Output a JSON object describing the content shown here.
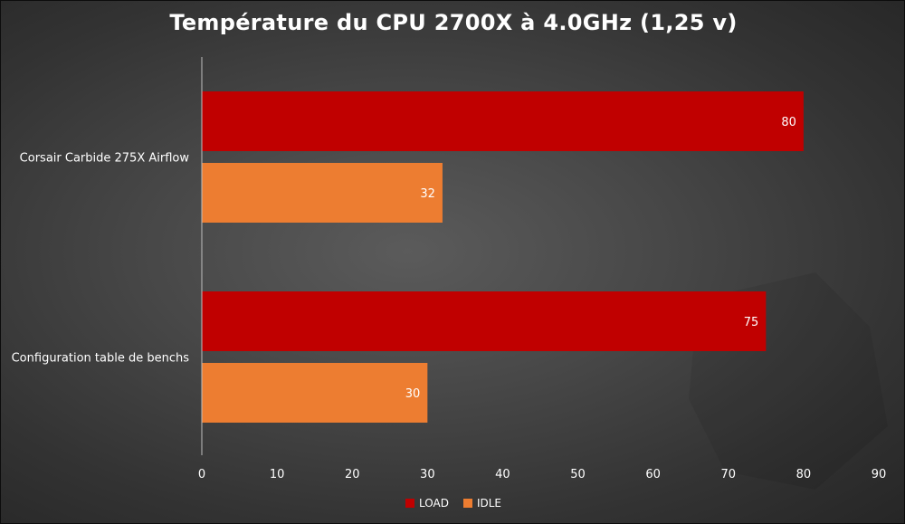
{
  "chart_data": {
    "type": "bar",
    "orientation": "horizontal",
    "title": "Température du CPU 2700X à 4.0GHz (1,25 v)",
    "categories": [
      "Corsair Carbide 275X Airflow",
      "Configuration table de benchs"
    ],
    "series": [
      {
        "name": "LOAD",
        "color": "#c00000",
        "values": [
          80,
          75
        ]
      },
      {
        "name": "IDLE",
        "color": "#ed7d31",
        "values": [
          32,
          30
        ]
      }
    ],
    "xlim": [
      0,
      90
    ],
    "xticks": [
      0,
      10,
      20,
      30,
      40,
      50,
      60,
      70,
      80,
      90
    ],
    "grid": false,
    "legend_position": "bottom"
  }
}
